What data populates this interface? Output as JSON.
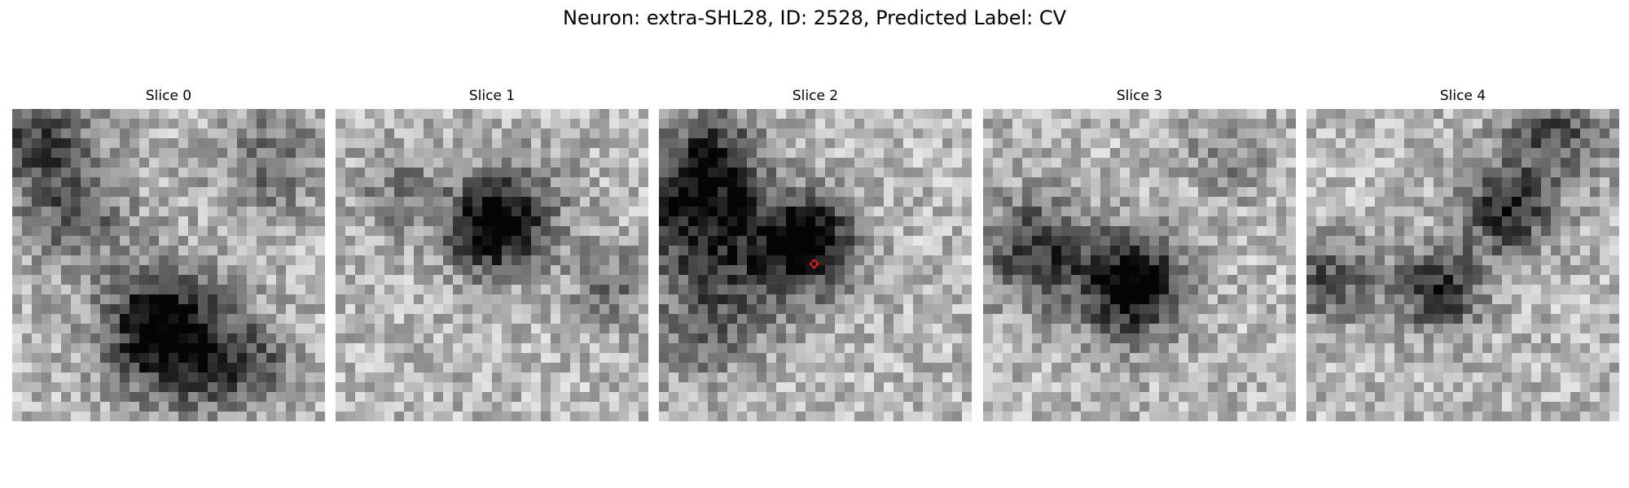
{
  "figure": {
    "title": "Neuron: extra-SHL28, ID: 2528, Predicted Label: CV",
    "colormap": "grayscale",
    "marker_color": "#e41a1c"
  },
  "slices": [
    {
      "label": "Slice 0"
    },
    {
      "label": "Slice 1"
    },
    {
      "label": "Slice 2",
      "has_marker": true
    },
    {
      "label": "Slice 3"
    },
    {
      "label": "Slice 4"
    }
  ]
}
